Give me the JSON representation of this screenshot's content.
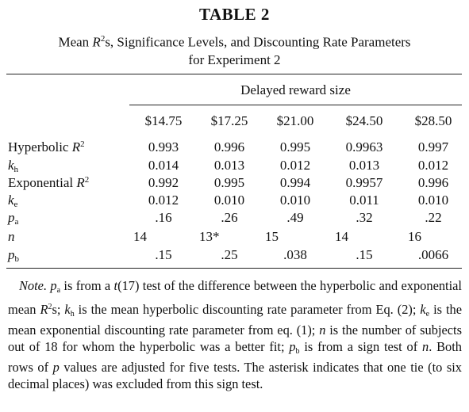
{
  "table": {
    "title": "TABLE 2",
    "caption_line1_pre": "Mean ",
    "caption_line1_var": "R",
    "caption_line1_sup": "2",
    "caption_line1_post": "s, Significance Levels, and Discounting Rate Parameters",
    "caption_line2": "for Experiment 2",
    "spanner": "Delayed reward size",
    "columns": [
      "$14.75",
      "$17.25",
      "$21.00",
      "$24.50",
      "$28.50"
    ],
    "rows": [
      {
        "label": "Hyperbolic ",
        "var": "R",
        "sup": "2",
        "sub": "",
        "values": [
          "0.993",
          "0.996",
          "0.995",
          "0.9963",
          "0.997"
        ]
      },
      {
        "label": "",
        "var": "k",
        "sup": "",
        "sub": "h",
        "values": [
          "0.014",
          "0.013",
          "0.012",
          "0.013",
          "0.012"
        ]
      },
      {
        "label": "Exponential ",
        "var": "R",
        "sup": "2",
        "sub": "",
        "values": [
          "0.992",
          "0.995",
          "0.994",
          "0.9957",
          "0.996"
        ]
      },
      {
        "label": "",
        "var": "k",
        "sup": "",
        "sub": "e",
        "values": [
          "0.012",
          "0.010",
          "0.010",
          "0.011",
          "0.010"
        ]
      },
      {
        "label": "",
        "var": "p",
        "sup": "",
        "sub": "a",
        "values": [
          ".16",
          ".26",
          ".49",
          ".32",
          ".22"
        ]
      },
      {
        "label": "",
        "var": "n",
        "sup": "",
        "sub": "",
        "values": [
          "14",
          "13*",
          "15",
          "14",
          "16"
        ]
      },
      {
        "label": "",
        "var": "p",
        "sup": "",
        "sub": "b",
        "values": [
          ".15",
          ".25",
          ".038",
          ".15",
          ".0066"
        ]
      }
    ]
  },
  "note": {
    "lead": "Note.",
    "s1a": " ",
    "s1_var": "p",
    "s1_sub": "a",
    "s1b": " is from a ",
    "s1_t": "t",
    "s1c": "(17) test of the difference between the hyperbolic and exponential mean ",
    "s1_R": "R",
    "s1_sup": "2",
    "s1d": "s; ",
    "s2_var": "k",
    "s2_sub": "h",
    "s2a": " is the mean hyperbolic discounting rate parameter from Eq. (2); ",
    "s3_var": "k",
    "s3_sub": "e",
    "s3a": " is the mean exponential discounting rate parameter from eq. (1); ",
    "s4_var": "n",
    "s4a": " is the number of subjects out of 18 for whom the hyperbolic was a better fit; ",
    "s5_var": "p",
    "s5_sub": "b",
    "s5a": " is from a sign test of ",
    "s5_n": "n",
    "s5b": ". Both rows of ",
    "s6_var": "p",
    "s6a": " values are adjusted for five tests. The asterisk indicates that one tie (to six decimal places) was excluded from this sign test."
  }
}
